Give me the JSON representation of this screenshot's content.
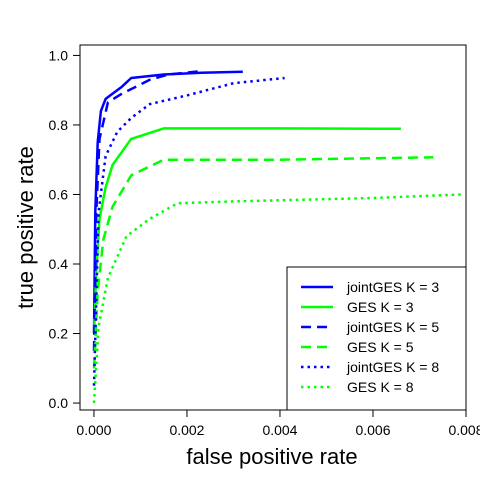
{
  "chart_data": {
    "type": "line",
    "title": "",
    "xlabel": "false positive rate",
    "ylabel": "true positive rate",
    "xlim": [
      -0.0003,
      0.008
    ],
    "ylim": [
      -0.02,
      1.03
    ],
    "xticks": [
      0.0,
      0.002,
      0.004,
      0.006,
      0.008
    ],
    "xtick_labels": [
      "0.000",
      "0.002",
      "0.004",
      "0.006",
      "0.008"
    ],
    "yticks": [
      0.0,
      0.2,
      0.4,
      0.6,
      0.8,
      1.0
    ],
    "ytick_labels": [
      "0.0",
      "0.2",
      "0.4",
      "0.6",
      "0.8",
      "1.0"
    ],
    "grid": false,
    "legend_position": "bottom-right",
    "series": [
      {
        "name": "jointGES K = 3",
        "color": "#0000ff",
        "dash": "solid",
        "points": [
          [
            0.0,
            0.2
          ],
          [
            3e-05,
            0.55
          ],
          [
            8e-05,
            0.75
          ],
          [
            0.00015,
            0.84
          ],
          [
            0.00025,
            0.875
          ],
          [
            0.0006,
            0.91
          ],
          [
            0.0008,
            0.935
          ],
          [
            0.0015,
            0.945
          ],
          [
            0.0023,
            0.95
          ],
          [
            0.0032,
            0.953
          ]
        ]
      },
      {
        "name": "GES K = 3",
        "color": "#00ff00",
        "dash": "solid",
        "points": [
          [
            0.0,
            0.2
          ],
          [
            5e-05,
            0.38
          ],
          [
            0.00012,
            0.53
          ],
          [
            0.00025,
            0.62
          ],
          [
            0.0004,
            0.685
          ],
          [
            0.0008,
            0.76
          ],
          [
            0.0015,
            0.79
          ],
          [
            0.004,
            0.79
          ],
          [
            0.0066,
            0.789
          ]
        ]
      },
      {
        "name": "jointGES K = 5",
        "color": "#0000ff",
        "dash": "dashed",
        "points": [
          [
            0.0,
            0.15
          ],
          [
            5e-05,
            0.55
          ],
          [
            0.00012,
            0.76
          ],
          [
            0.0003,
            0.865
          ],
          [
            0.0006,
            0.89
          ],
          [
            0.0012,
            0.93
          ],
          [
            0.0016,
            0.945
          ],
          [
            0.0023,
            0.955
          ]
        ]
      },
      {
        "name": "GES K = 5",
        "color": "#00ff00",
        "dash": "dashed",
        "points": [
          [
            0.0,
            0.1
          ],
          [
            8e-05,
            0.32
          ],
          [
            0.0002,
            0.47
          ],
          [
            0.0004,
            0.565
          ],
          [
            0.0008,
            0.655
          ],
          [
            0.0015,
            0.7
          ],
          [
            0.004,
            0.7
          ],
          [
            0.0073,
            0.707
          ]
        ]
      },
      {
        "name": "jointGES K = 8",
        "color": "#0000ff",
        "dash": "dotted",
        "points": [
          [
            0.0,
            0.05
          ],
          [
            0.0001,
            0.55
          ],
          [
            0.00025,
            0.71
          ],
          [
            0.0005,
            0.78
          ],
          [
            0.0008,
            0.82
          ],
          [
            0.0012,
            0.86
          ],
          [
            0.002,
            0.885
          ],
          [
            0.003,
            0.92
          ],
          [
            0.0041,
            0.935
          ]
        ]
      },
      {
        "name": "GES K = 8",
        "color": "#00ff00",
        "dash": "dotted",
        "points": [
          [
            0.0,
            0.0
          ],
          [
            0.0001,
            0.22
          ],
          [
            0.0003,
            0.36
          ],
          [
            0.0007,
            0.48
          ],
          [
            0.0012,
            0.53
          ],
          [
            0.0018,
            0.575
          ],
          [
            0.003,
            0.58
          ],
          [
            0.006,
            0.59
          ],
          [
            0.0079,
            0.6
          ]
        ]
      }
    ]
  }
}
